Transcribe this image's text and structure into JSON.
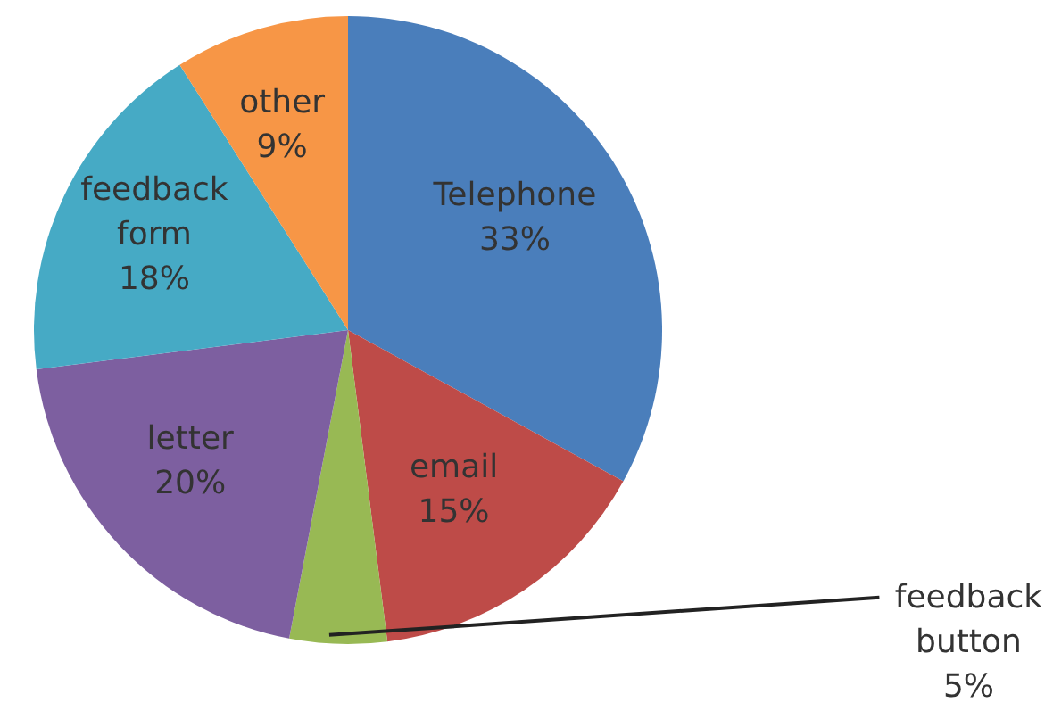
{
  "chart_data": {
    "type": "pie",
    "categories": [
      "Telephone",
      "email",
      "feedback button",
      "letter",
      "feedback form",
      "other"
    ],
    "values": [
      33,
      15,
      5,
      20,
      18,
      9
    ],
    "value_labels": [
      "33%",
      "15%",
      "5%",
      "20%",
      "18%",
      "9%"
    ],
    "colors": [
      "#4a7ebb",
      "#be4b48",
      "#98b954",
      "#7d5fa0",
      "#46aac5",
      "#f79646"
    ],
    "legend": false
  }
}
